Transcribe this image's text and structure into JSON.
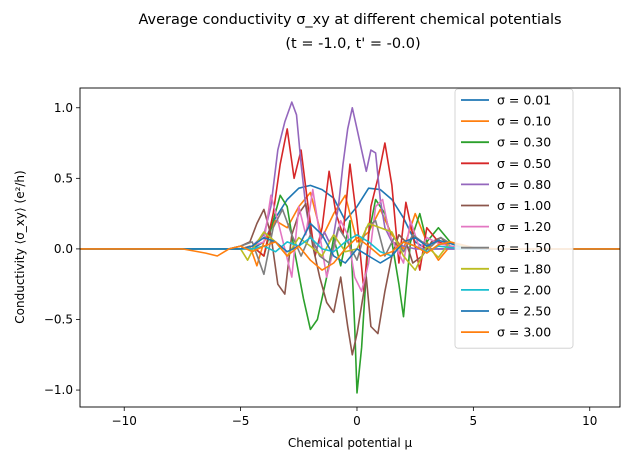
{
  "chart_data": {
    "type": "line",
    "title": "Average conductivity σ_xy at different chemical potentials",
    "subtitle": "(t = -1.0, t' = -0.0)",
    "xlabel": "Chemical potential μ",
    "ylabel": "Conductivity ⟨σ_xy⟩ (e²/h)",
    "xlim": [
      -11.9,
      11.3
    ],
    "ylim": [
      -1.12,
      1.14
    ],
    "xticks": [
      -10,
      -5,
      0,
      5,
      10
    ],
    "yticks": [
      -1.0,
      -0.5,
      0.0,
      0.5,
      1.0
    ],
    "xtick_labels": [
      "−10",
      "−5",
      "0",
      "5",
      "10"
    ],
    "ytick_labels": [
      "−1.0",
      "−0.5",
      "0.0",
      "0.5",
      "1.0"
    ],
    "grid": false,
    "legend_position": "top-right",
    "series": [
      {
        "name": "σ = 0.01",
        "color": "#1f77b4",
        "x": [
          -11.9,
          -6,
          -4.5,
          -4,
          -3.5,
          -3,
          -2.5,
          -2,
          -1.5,
          -1,
          -0.5,
          0,
          0.5,
          1,
          1.5,
          2,
          2.5,
          3,
          3.5,
          4,
          4.5,
          6,
          11.3
        ],
        "y": [
          0,
          0,
          0,
          0.05,
          0.22,
          0.35,
          0.43,
          0.45,
          0.42,
          0.36,
          0.2,
          0.3,
          0.43,
          0.42,
          0.35,
          0.22,
          0.05,
          0,
          0,
          0,
          0,
          0,
          0
        ]
      },
      {
        "name": "σ = 0.10",
        "color": "#ff7f0e",
        "x": [
          -11.9,
          -6,
          -5,
          -4.6,
          -4.3,
          -4,
          -3.5,
          -3,
          -2.5,
          -2,
          -1.5,
          -1,
          -0.5,
          0,
          0.5,
          1,
          1.5,
          2,
          2.5,
          3,
          3.5,
          4,
          4.5,
          5,
          6,
          11.3
        ],
        "y": [
          0,
          0,
          0,
          0.02,
          -0.12,
          0.05,
          0.2,
          0.15,
          0.3,
          0.4,
          0.08,
          0.25,
          0.38,
          0.05,
          0.12,
          0.28,
          0.1,
          0,
          0.25,
          0.05,
          -0.08,
          0.02,
          0,
          0,
          0,
          0
        ]
      },
      {
        "name": "σ = 0.30",
        "color": "#2ca02c",
        "x": [
          -11.9,
          -6,
          -5,
          -4.5,
          -4,
          -3.6,
          -3.3,
          -3,
          -2.7,
          -2.3,
          -2,
          -1.7,
          -1.3,
          -1,
          -0.7,
          -0.3,
          -0.1,
          0,
          0.2,
          0.5,
          0.8,
          1.2,
          1.5,
          1.8,
          2,
          2.3,
          2.7,
          3,
          3.5,
          4,
          4.5,
          5,
          6,
          11.3
        ],
        "y": [
          0,
          0,
          0,
          0.02,
          -0.05,
          0.2,
          0.38,
          0.3,
          0.0,
          -0.35,
          -0.57,
          -0.5,
          -0.2,
          0.08,
          -0.12,
          0.2,
          -0.55,
          -1.02,
          -0.7,
          0.1,
          0.35,
          0.25,
          0.05,
          -0.25,
          -0.48,
          0.05,
          0.25,
          0.05,
          0.15,
          0.05,
          0.0,
          0,
          0,
          0
        ]
      },
      {
        "name": "σ = 0.50",
        "color": "#d62728",
        "x": [
          -11.9,
          -6,
          -5,
          -4.5,
          -4,
          -3.6,
          -3.3,
          -3,
          -2.7,
          -2.4,
          -2.1,
          -1.8,
          -1.5,
          -1.2,
          -0.9,
          -0.6,
          -0.3,
          0,
          0.3,
          0.6,
          0.9,
          1.2,
          1.5,
          1.8,
          2.1,
          2.4,
          2.7,
          3,
          3.5,
          4,
          4.5,
          5,
          6,
          11.3
        ],
        "y": [
          0,
          0,
          0,
          0.02,
          -0.05,
          0.25,
          0.6,
          0.85,
          0.5,
          0.7,
          0.3,
          -0.05,
          0.15,
          0.55,
          0.25,
          0.1,
          0.6,
          0.2,
          -0.3,
          0.3,
          0.5,
          0.75,
          0.45,
          -0.1,
          0.33,
          0.1,
          -0.15,
          0.15,
          0.05,
          0.02,
          0,
          0,
          0,
          0
        ]
      },
      {
        "name": "σ = 0.80",
        "color": "#9467bd",
        "x": [
          -11.9,
          -6,
          -5,
          -4.5,
          -4,
          -3.7,
          -3.4,
          -3.1,
          -2.8,
          -2.6,
          -2.4,
          -2.2,
          -2,
          -1.8,
          -1.6,
          -1.4,
          -1.2,
          -1,
          -0.8,
          -0.6,
          -0.4,
          -0.2,
          0,
          0.2,
          0.4,
          0.6,
          0.8,
          1,
          1.2,
          1.5,
          2,
          2.5,
          3,
          3.5,
          4,
          4.5,
          5,
          6,
          11.3
        ],
        "y": [
          0,
          0,
          0,
          0.02,
          0.1,
          0.3,
          0.7,
          0.9,
          1.04,
          0.95,
          0.6,
          0.3,
          0.1,
          -0.02,
          0.05,
          0.12,
          0.05,
          0.1,
          0.3,
          0.6,
          0.85,
          1.0,
          0.85,
          0.7,
          0.55,
          0.7,
          0.68,
          0.35,
          0.15,
          0.05,
          0.02,
          0,
          0,
          0,
          0,
          0,
          0,
          0,
          0
        ]
      },
      {
        "name": "σ = 1.00",
        "color": "#8c564b",
        "x": [
          -11.9,
          -6,
          -5.5,
          -5,
          -4.6,
          -4.3,
          -4,
          -3.7,
          -3.4,
          -3.1,
          -2.8,
          -2.5,
          -2.2,
          -1.9,
          -1.6,
          -1.3,
          -1.0,
          -0.7,
          -0.4,
          -0.2,
          0,
          0.2,
          0.4,
          0.6,
          0.9,
          1.2,
          1.5,
          1.8,
          2.1,
          2.4,
          2.8,
          3.2,
          3.6,
          4,
          4.5,
          5,
          6,
          11.3
        ],
        "y": [
          0,
          0,
          0,
          0.02,
          0.05,
          0.18,
          0.28,
          0.1,
          -0.25,
          -0.32,
          0.1,
          0.25,
          0.32,
          0.02,
          -0.2,
          -0.38,
          -0.45,
          -0.2,
          -0.55,
          -0.75,
          -0.6,
          -0.4,
          -0.2,
          -0.55,
          -0.6,
          -0.3,
          -0.05,
          0.1,
          0.05,
          -0.1,
          -0.05,
          0.05,
          0.08,
          0.02,
          0,
          0,
          0,
          0
        ]
      },
      {
        "name": "σ = 1.20",
        "color": "#e377c2",
        "x": [
          -11.9,
          -6,
          -5,
          -4.5,
          -4,
          -3.7,
          -3.4,
          -3.1,
          -2.8,
          -2.5,
          -2.2,
          -1.9,
          -1.6,
          -1.3,
          -1.0,
          -0.7,
          -0.4,
          -0.1,
          0.2,
          0.5,
          0.8,
          1.1,
          1.4,
          1.7,
          2,
          2.3,
          2.7,
          3,
          3.5,
          4,
          4.5,
          5,
          6,
          11.3
        ],
        "y": [
          0,
          0,
          0,
          0.02,
          0.05,
          0.38,
          0.2,
          0.0,
          -0.2,
          0.3,
          0.1,
          0.42,
          0.1,
          -0.2,
          0.0,
          0.2,
          0.1,
          -0.2,
          -0.3,
          -0.1,
          0.3,
          0.35,
          0.1,
          0.0,
          -0.1,
          0.2,
          0.0,
          0.08,
          0.04,
          0.02,
          0,
          0,
          0,
          0
        ]
      },
      {
        "name": "σ = 1.50",
        "color": "#7f7f7f",
        "x": [
          -11.9,
          -6,
          -5.5,
          -5,
          -4.5,
          -4,
          -3.6,
          -3.2,
          -2.8,
          -2.4,
          -2,
          -1.6,
          -1.2,
          -0.8,
          -0.4,
          0,
          0.4,
          0.8,
          1.2,
          1.6,
          2,
          2.4,
          2.8,
          3.2,
          3.6,
          4,
          4.5,
          5,
          6,
          11.3
        ],
        "y": [
          0,
          0,
          0,
          0.02,
          0.05,
          -0.18,
          0.15,
          0.28,
          0.1,
          -0.05,
          0.1,
          -0.05,
          -0.1,
          0.15,
          0.05,
          -0.08,
          0.15,
          0.2,
          -0.05,
          0.08,
          -0.02,
          0.1,
          0.05,
          0.02,
          0.08,
          0.04,
          0.01,
          0,
          0,
          0
        ]
      },
      {
        "name": "σ = 1.80",
        "color": "#bcbd22",
        "x": [
          -11.9,
          -6,
          -5.5,
          -5,
          -4.7,
          -4.4,
          -4,
          -3.5,
          -3,
          -2.5,
          -2,
          -1.5,
          -1,
          -0.5,
          0,
          0.5,
          1,
          1.5,
          2,
          2.5,
          3,
          3.5,
          4,
          4.5,
          5,
          6,
          11.3
        ],
        "y": [
          0,
          0,
          0,
          0,
          -0.08,
          0.02,
          0.12,
          0.05,
          -0.05,
          0.08,
          0.02,
          -0.05,
          0.1,
          -0.02,
          0.0,
          0.18,
          0.15,
          0.12,
          -0.05,
          -0.15,
          0.02,
          -0.06,
          0.05,
          0.02,
          0,
          0,
          0
        ]
      },
      {
        "name": "σ = 2.00",
        "color": "#17becf",
        "x": [
          -11.9,
          -6,
          -5,
          -4.5,
          -4,
          -3.5,
          -3,
          -2.5,
          -2,
          -1.5,
          -1,
          -0.5,
          0,
          0.5,
          1,
          1.5,
          2,
          2.5,
          3,
          3.5,
          4,
          4.5,
          5,
          6,
          11.3
        ],
        "y": [
          0,
          0,
          0,
          0,
          0.02,
          -0.02,
          0.05,
          0.02,
          0.08,
          0.0,
          -0.02,
          0.05,
          0.1,
          0.05,
          -0.02,
          -0.05,
          0.05,
          0.02,
          -0.02,
          0.02,
          0.01,
          0,
          0,
          0,
          0
        ]
      },
      {
        "name": "σ = 2.50",
        "color": "#1f77b4",
        "x": [
          -11.9,
          -6,
          -5,
          -4.5,
          -4,
          -3.5,
          -3,
          -2.5,
          -2,
          -1.5,
          -1,
          -0.5,
          0,
          0.5,
          1,
          1.5,
          2,
          2.5,
          3,
          3.5,
          4,
          4.5,
          5,
          6,
          11.3
        ],
        "y": [
          0,
          0,
          0,
          0.02,
          0.08,
          0.05,
          -0.02,
          0.02,
          0.18,
          0.1,
          -0.05,
          -0.1,
          0.0,
          -0.05,
          -0.1,
          -0.05,
          0.05,
          0.08,
          0.02,
          0.06,
          0.04,
          0.01,
          0,
          0,
          0
        ]
      },
      {
        "name": "σ = 3.00",
        "color": "#ff7f0e",
        "x": [
          -11.9,
          -7.5,
          -6.5,
          -6,
          -5.5,
          -5,
          -4.5,
          -4,
          -3.5,
          -3,
          -2.5,
          -2,
          -1.5,
          -1,
          -0.5,
          0,
          0.5,
          1,
          1.5,
          2,
          2.5,
          3,
          3.5,
          4,
          4.5,
          5,
          6,
          11.3
        ],
        "y": [
          0,
          0,
          -0.03,
          -0.05,
          0.0,
          0.02,
          -0.02,
          0.02,
          0.05,
          -0.05,
          0.02,
          -0.08,
          -0.15,
          -0.1,
          0.0,
          0.08,
          0.02,
          -0.05,
          -0.02,
          0.05,
          0.02,
          -0.03,
          0.03,
          0.05,
          0.03,
          0.01,
          0,
          0
        ]
      }
    ]
  }
}
